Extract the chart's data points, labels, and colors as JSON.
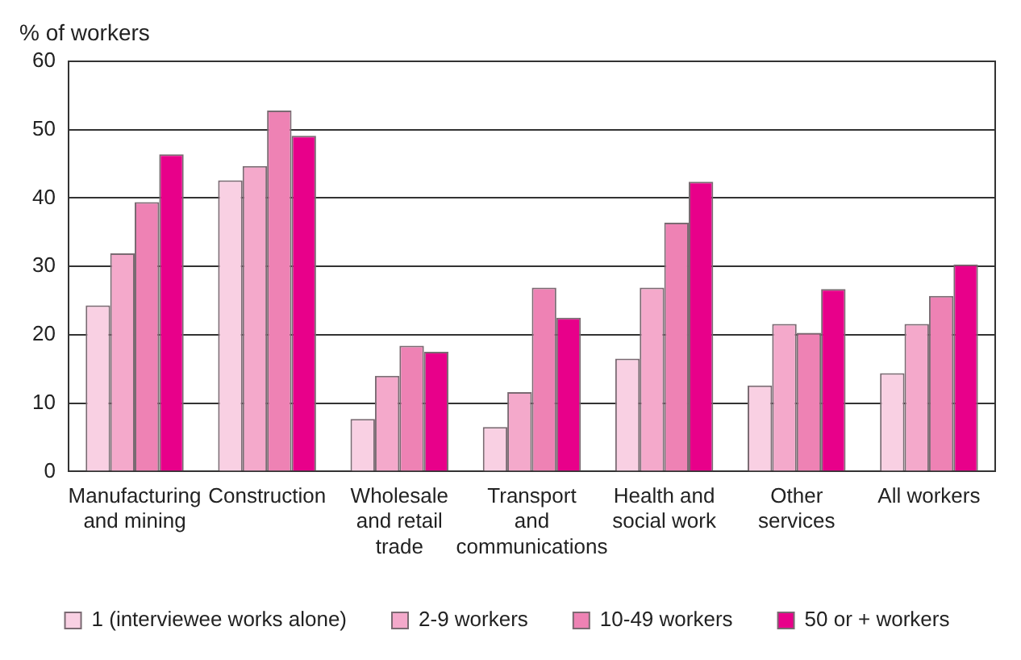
{
  "chart_data": {
    "type": "bar",
    "ylabel": "% of workers",
    "categories": [
      "Manufacturing and mining",
      "Construction",
      "Wholesale and retail trade",
      "Transport and communications",
      "Health and social work",
      "Other services",
      "All workers"
    ],
    "series": [
      {
        "name": "1 (interviewee works alone)",
        "color": "#f9d0e3",
        "values": [
          24.3,
          42.6,
          7.7,
          6.5,
          16.5,
          12.6,
          14.4
        ]
      },
      {
        "name": "2-9 workers",
        "color": "#f4a9cb",
        "values": [
          31.9,
          44.7,
          14.0,
          11.6,
          26.9,
          21.6,
          21.6
        ]
      },
      {
        "name": "10-49 workers",
        "color": "#ee82b4",
        "values": [
          39.4,
          52.8,
          18.4,
          26.9,
          36.4,
          20.3,
          25.7
        ]
      },
      {
        "name": "50 or + workers",
        "color": "#e8008a",
        "values": [
          46.4,
          49.1,
          17.5,
          22.5,
          42.4,
          26.7,
          30.3
        ]
      }
    ],
    "ylim": [
      0,
      60
    ],
    "yticks": [
      0,
      10,
      20,
      30,
      40,
      50,
      60
    ],
    "grid": "y",
    "legend": "bottom"
  }
}
